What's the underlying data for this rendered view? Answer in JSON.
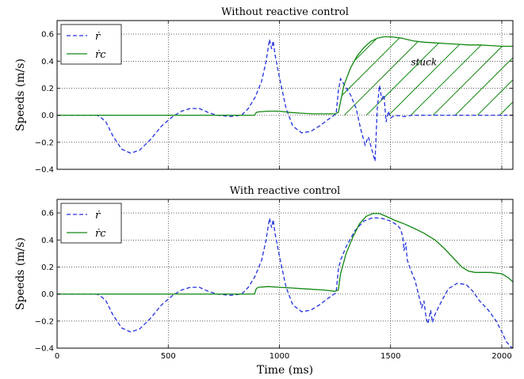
{
  "chart_data": [
    {
      "type": "line",
      "title": "Without reactive control",
      "xlabel": "",
      "ylabel": "Speeds (m/s)",
      "xlim": [
        0,
        2050
      ],
      "ylim": [
        -0.4,
        0.7
      ],
      "x_ticks": [],
      "y_ticks": [
        "0.6",
        "0.4",
        "0.2",
        "0.0",
        "−0.2",
        "−0.4"
      ],
      "y_tick_values": [
        0.6,
        0.4,
        0.2,
        0.0,
        -0.2,
        -0.4
      ],
      "grid": true,
      "legend": "top-left",
      "annotation": {
        "text": "stuck",
        "x": 1650,
        "y": 0.37
      },
      "hatched_region": {
        "x_start": 1270,
        "x_end": 2050,
        "between": [
          "ṙc",
          "0"
        ]
      },
      "series": [
        {
          "name": "ṙ",
          "style": "dashed",
          "color": "#2030e0",
          "points": [
            [
              0,
              0
            ],
            [
              180,
              0
            ],
            [
              200,
              -0.02
            ],
            [
              220,
              -0.05
            ],
            [
              250,
              -0.15
            ],
            [
              290,
              -0.25
            ],
            [
              330,
              -0.28
            ],
            [
              370,
              -0.26
            ],
            [
              420,
              -0.18
            ],
            [
              470,
              -0.08
            ],
            [
              520,
              -0.01
            ],
            [
              560,
              0.03
            ],
            [
              600,
              0.05
            ],
            [
              640,
              0.05
            ],
            [
              680,
              0.02
            ],
            [
              720,
              0
            ],
            [
              780,
              -0.01
            ],
            [
              830,
              0
            ],
            [
              860,
              0.05
            ],
            [
              890,
              0.13
            ],
            [
              920,
              0.25
            ],
            [
              940,
              0.4
            ],
            [
              955,
              0.56
            ],
            [
              965,
              0.49
            ],
            [
              972,
              0.55
            ],
            [
              980,
              0.45
            ],
            [
              1000,
              0.28
            ],
            [
              1030,
              0.05
            ],
            [
              1060,
              -0.08
            ],
            [
              1100,
              -0.13
            ],
            [
              1140,
              -0.12
            ],
            [
              1180,
              -0.08
            ],
            [
              1220,
              -0.03
            ],
            [
              1255,
              0.01
            ],
            [
              1265,
              0.18
            ],
            [
              1275,
              0.27
            ],
            [
              1290,
              0.23
            ],
            [
              1320,
              0.15
            ],
            [
              1345,
              0.05
            ],
            [
              1365,
              -0.1
            ],
            [
              1385,
              -0.22
            ],
            [
              1400,
              -0.16
            ],
            [
              1410,
              -0.22
            ],
            [
              1420,
              -0.28
            ],
            [
              1430,
              -0.34
            ],
            [
              1440,
              0.05
            ],
            [
              1450,
              0.22
            ],
            [
              1460,
              0.12
            ],
            [
              1470,
              0.15
            ],
            [
              1480,
              -0.05
            ],
            [
              1490,
              0.03
            ],
            [
              1500,
              -0.02
            ],
            [
              1520,
              0
            ],
            [
              1560,
              -0.01
            ],
            [
              1600,
              0
            ],
            [
              1700,
              0
            ],
            [
              1800,
              0
            ],
            [
              1900,
              0
            ],
            [
              2000,
              0
            ],
            [
              2050,
              0
            ]
          ]
        },
        {
          "name": "ṙc",
          "style": "solid",
          "color": "#118811",
          "points": [
            [
              0,
              0
            ],
            [
              888,
              0
            ],
            [
              896,
              0.02
            ],
            [
              905,
              0.025
            ],
            [
              950,
              0.03
            ],
            [
              1000,
              0.03
            ],
            [
              1050,
              0.02
            ],
            [
              1100,
              0.015
            ],
            [
              1150,
              0.01
            ],
            [
              1200,
              0.01
            ],
            [
              1250,
              0.01
            ],
            [
              1265,
              0.02
            ],
            [
              1275,
              0.1
            ],
            [
              1290,
              0.22
            ],
            [
              1320,
              0.35
            ],
            [
              1350,
              0.44
            ],
            [
              1380,
              0.5
            ],
            [
              1410,
              0.545
            ],
            [
              1440,
              0.57
            ],
            [
              1470,
              0.58
            ],
            [
              1500,
              0.58
            ],
            [
              1550,
              0.57
            ],
            [
              1600,
              0.55
            ],
            [
              1650,
              0.54
            ],
            [
              1700,
              0.535
            ],
            [
              1750,
              0.53
            ],
            [
              1800,
              0.525
            ],
            [
              1850,
              0.52
            ],
            [
              1900,
              0.52
            ],
            [
              1950,
              0.515
            ],
            [
              2000,
              0.51
            ],
            [
              2050,
              0.51
            ]
          ]
        }
      ]
    },
    {
      "type": "line",
      "title": "With reactive control",
      "xlabel": "Time (ms)",
      "ylabel": "Speeds (m/s)",
      "xlim": [
        0,
        2050
      ],
      "ylim": [
        -0.4,
        0.7
      ],
      "x_ticks": [
        "0",
        "500",
        "1000",
        "1500",
        "2000"
      ],
      "x_tick_values": [
        0,
        500,
        1000,
        1500,
        2000
      ],
      "y_ticks": [
        "0.6",
        "0.4",
        "0.2",
        "0.0",
        "−0.2",
        "−0.4"
      ],
      "y_tick_values": [
        0.6,
        0.4,
        0.2,
        0.0,
        -0.2,
        -0.4
      ],
      "grid": true,
      "legend": "top-left",
      "series": [
        {
          "name": "ṙ",
          "style": "dashed",
          "color": "#2030e0",
          "points": [
            [
              0,
              0
            ],
            [
              180,
              0
            ],
            [
              200,
              -0.02
            ],
            [
              220,
              -0.05
            ],
            [
              250,
              -0.15
            ],
            [
              290,
              -0.25
            ],
            [
              330,
              -0.28
            ],
            [
              370,
              -0.26
            ],
            [
              420,
              -0.18
            ],
            [
              470,
              -0.08
            ],
            [
              520,
              -0.01
            ],
            [
              560,
              0.03
            ],
            [
              600,
              0.05
            ],
            [
              640,
              0.05
            ],
            [
              680,
              0.02
            ],
            [
              720,
              0
            ],
            [
              780,
              -0.01
            ],
            [
              830,
              0
            ],
            [
              860,
              0.05
            ],
            [
              890,
              0.13
            ],
            [
              920,
              0.25
            ],
            [
              940,
              0.4
            ],
            [
              955,
              0.56
            ],
            [
              965,
              0.49
            ],
            [
              972,
              0.55
            ],
            [
              980,
              0.45
            ],
            [
              1000,
              0.28
            ],
            [
              1030,
              0.05
            ],
            [
              1060,
              -0.08
            ],
            [
              1100,
              -0.13
            ],
            [
              1140,
              -0.12
            ],
            [
              1180,
              -0.08
            ],
            [
              1220,
              -0.03
            ],
            [
              1255,
              0.01
            ],
            [
              1265,
              0.18
            ],
            [
              1275,
              0.25
            ],
            [
              1300,
              0.35
            ],
            [
              1340,
              0.47
            ],
            [
              1380,
              0.54
            ],
            [
              1420,
              0.565
            ],
            [
              1460,
              0.56
            ],
            [
              1500,
              0.54
            ],
            [
              1530,
              0.51
            ],
            [
              1545,
              0.48
            ],
            [
              1555,
              0.42
            ],
            [
              1560,
              0.32
            ],
            [
              1568,
              0.38
            ],
            [
              1575,
              0.25
            ],
            [
              1590,
              0.18
            ],
            [
              1610,
              0.1
            ],
            [
              1625,
              0
            ],
            [
              1640,
              -0.1
            ],
            [
              1650,
              -0.05
            ],
            [
              1660,
              -0.18
            ],
            [
              1668,
              -0.22
            ],
            [
              1680,
              -0.12
            ],
            [
              1688,
              -0.21
            ],
            [
              1700,
              -0.15
            ],
            [
              1730,
              -0.05
            ],
            [
              1760,
              0.04
            ],
            [
              1800,
              0.08
            ],
            [
              1840,
              0.07
            ],
            [
              1870,
              0.02
            ],
            [
              1900,
              -0.05
            ],
            [
              1940,
              -0.12
            ],
            [
              1975,
              -0.2
            ],
            [
              2000,
              -0.28
            ],
            [
              2020,
              -0.35
            ],
            [
              2040,
              -0.39
            ],
            [
              2050,
              -0.4
            ]
          ]
        },
        {
          "name": "ṙc",
          "style": "solid",
          "color": "#118811",
          "points": [
            [
              0,
              0
            ],
            [
              888,
              0
            ],
            [
              896,
              0.04
            ],
            [
              905,
              0.05
            ],
            [
              950,
              0.055
            ],
            [
              1000,
              0.05
            ],
            [
              1050,
              0.045
            ],
            [
              1100,
              0.04
            ],
            [
              1150,
              0.035
            ],
            [
              1200,
              0.03
            ],
            [
              1250,
              0.02
            ],
            [
              1265,
              0.03
            ],
            [
              1275,
              0.15
            ],
            [
              1300,
              0.3
            ],
            [
              1330,
              0.42
            ],
            [
              1360,
              0.52
            ],
            [
              1390,
              0.575
            ],
            [
              1420,
              0.595
            ],
            [
              1450,
              0.595
            ],
            [
              1480,
              0.575
            ],
            [
              1520,
              0.545
            ],
            [
              1560,
              0.52
            ],
            [
              1600,
              0.49
            ],
            [
              1650,
              0.45
            ],
            [
              1700,
              0.4
            ],
            [
              1740,
              0.34
            ],
            [
              1780,
              0.27
            ],
            [
              1820,
              0.2
            ],
            [
              1850,
              0.17
            ],
            [
              1880,
              0.16
            ],
            [
              1950,
              0.16
            ],
            [
              2000,
              0.15
            ],
            [
              2030,
              0.12
            ],
            [
              2050,
              0.09
            ]
          ]
        }
      ]
    }
  ]
}
